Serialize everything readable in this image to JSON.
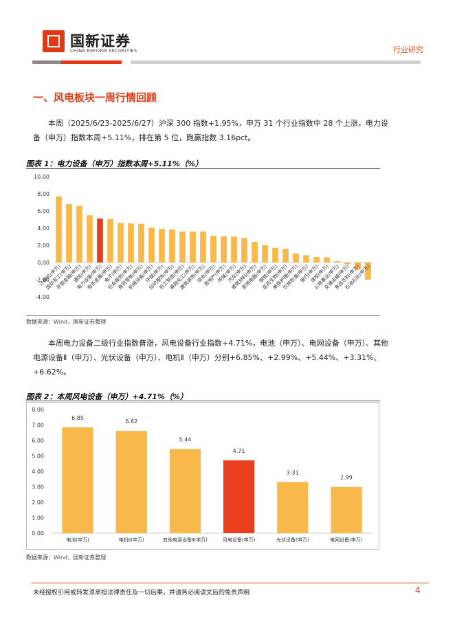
{
  "header": {
    "logo_cn": "国新证券",
    "logo_en": "CHINA REFORM SECURITIES",
    "report_type": "行业研究"
  },
  "section": {
    "title": "一、风电板块一周行情回顾"
  },
  "paragraph1": "本周（2025/6/23-2025/6/27）沪深 300 指数+1.95%，申万 31 个行业指数中 28 个上涨，电力设备（申万）指数本周+5.11%，排在第 5 位，跑赢指数 3.16pct。",
  "figure1": {
    "title": "图表 1：电力设备（申万）指数本周+5.11%（%）",
    "source": "数据来源：Wind，国新证券整理"
  },
  "paragraph2": "本周电力设备二级行业指数普涨，风电设备行业指数+4.71%，电池（申万）、电网设备（申万）、其他电源设备Ⅱ（申万）、光伏设备（申万）、电机Ⅱ（申万）分别+6.85%、+2.99%、+5.44%、+3.31%、+6.62%。",
  "figure2": {
    "title": "图表 2：本周风电设备（申万）+4.71%（%）",
    "source": "数据来源：Wind，国新证券整理"
  },
  "footer": {
    "disclaimer": "未经授权引用或转发须承担法律责任及一切后果，并请务必阅读文后的免责声明",
    "page": "4"
  },
  "colors": {
    "bar": "#f9b84a",
    "highlight": "#e8401c",
    "accent": "#e03a14"
  },
  "chart_data": [
    {
      "type": "bar",
      "categories": [
        "计算机(申万)",
        "国防军工(申万)",
        "非银金融(申万)",
        "通信(申万)",
        "电力设备(申万)",
        "有色金属(申万)",
        "电子(申万)",
        "社会服务(申万)",
        "商贸零售(申万)",
        "机械设备(申万)",
        "环保(申万)",
        "纺织服饰(申万)",
        "轻工制造(申万)",
        "基础化工(申万)",
        "建筑装饰(申万)",
        "综合(申万)",
        "房地产(申万)",
        "传媒(申万)",
        "汽车(申万)",
        "建筑材料(申万)",
        "家用电器(申万)",
        "钢铁(申万)",
        "医药生物(申万)",
        "美容护理(申万)",
        "农林牧渔(申万)",
        "银行(申万)",
        "煤炭(申万)",
        "公用事业(申万)",
        "交通运输(申万)",
        "食品饮料(申万)",
        "石油石化(申万)"
      ],
      "values": [
        7.7,
        6.8,
        6.6,
        5.5,
        5.11,
        5.05,
        4.6,
        4.55,
        4.5,
        4.05,
        3.9,
        3.85,
        3.6,
        3.6,
        3.6,
        3.1,
        3.05,
        3.0,
        2.85,
        2.4,
        2.0,
        1.7,
        1.6,
        1.05,
        0.85,
        0.65,
        0.6,
        0.15,
        -0.2,
        -0.85,
        -2.0
      ],
      "highlight_index": 4,
      "ylim": [
        -4,
        10
      ],
      "yticks": [
        "10.00",
        "8.00",
        "6.00",
        "4.00",
        "2.00",
        "0.00",
        "-2.00",
        "-4.00"
      ],
      "ytick_values": [
        10,
        8,
        6,
        4,
        2,
        0,
        -2,
        -4
      ]
    },
    {
      "type": "bar",
      "categories": [
        "电池(申万)",
        "电机Ⅱ(申万)",
        "其他电源设备Ⅱ(申万)",
        "风电设备(申万)",
        "光伏设备(申万)",
        "电网设备(申万)"
      ],
      "values": [
        6.85,
        6.62,
        5.44,
        4.71,
        3.31,
        2.99
      ],
      "value_labels": [
        "6.85",
        "6.62",
        "5.44",
        "4.71",
        "3.31",
        "2.99"
      ],
      "highlight_index": 3,
      "ylim": [
        0,
        8
      ],
      "yticks": [
        "8.00",
        "7.00",
        "6.00",
        "5.00",
        "4.00",
        "3.00",
        "2.00",
        "1.00",
        "0.00"
      ],
      "ytick_values": [
        8,
        7,
        6,
        5,
        4,
        3,
        2,
        1,
        0
      ]
    }
  ]
}
